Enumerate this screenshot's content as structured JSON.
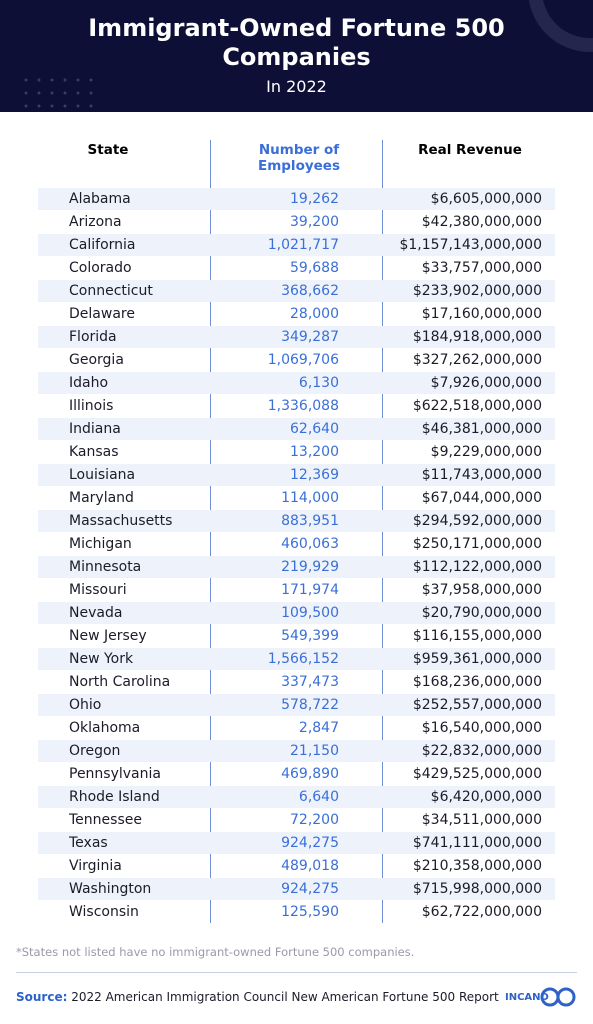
{
  "header": {
    "title": "Immigrant-Owned Fortune 500 Companies",
    "subtitle": "In 2022"
  },
  "table": {
    "columns": [
      "State",
      "Number of Employees",
      "Real Revenue"
    ],
    "rows": [
      [
        "Alabama",
        "19,262",
        "$6,605,000,000"
      ],
      [
        "Arizona",
        "39,200",
        "$42,380,000,000"
      ],
      [
        "California",
        "1,021,717",
        "$1,157,143,000,000"
      ],
      [
        "Colorado",
        "59,688",
        "$33,757,000,000"
      ],
      [
        "Connecticut",
        "368,662",
        "$233,902,000,000"
      ],
      [
        "Delaware",
        "28,000",
        "$17,160,000,000"
      ],
      [
        "Florida",
        "349,287",
        "$184,918,000,000"
      ],
      [
        "Georgia",
        "1,069,706",
        "$327,262,000,000"
      ],
      [
        "Idaho",
        "6,130",
        "$7,926,000,000"
      ],
      [
        "Illinois",
        "1,336,088",
        "$622,518,000,000"
      ],
      [
        "Indiana",
        "62,640",
        "$46,381,000,000"
      ],
      [
        "Kansas",
        "13,200",
        "$9,229,000,000"
      ],
      [
        "Louisiana",
        "12,369",
        "$11,743,000,000"
      ],
      [
        "Maryland",
        "114,000",
        "$67,044,000,000"
      ],
      [
        "Massachusetts",
        "883,951",
        "$294,592,000,000"
      ],
      [
        "Michigan",
        "460,063",
        "$250,171,000,000"
      ],
      [
        "Minnesota",
        "219,929",
        "$112,122,000,000"
      ],
      [
        "Missouri",
        "171,974",
        "$37,958,000,000"
      ],
      [
        "Nevada",
        "109,500",
        "$20,790,000,000"
      ],
      [
        "New Jersey",
        "549,399",
        "$116,155,000,000"
      ],
      [
        "New York",
        "1,566,152",
        "$959,361,000,000"
      ],
      [
        "North Carolina",
        "337,473",
        "$168,236,000,000"
      ],
      [
        "Ohio",
        "578,722",
        "$252,557,000,000"
      ],
      [
        "Oklahoma",
        "2,847",
        "$16,540,000,000"
      ],
      [
        "Oregon",
        "21,150",
        "$22,832,000,000"
      ],
      [
        "Pennsylvania",
        "469,890",
        "$429,525,000,000"
      ],
      [
        "Rhode Island",
        "6,640",
        "$6,420,000,000"
      ],
      [
        "Tennessee",
        "72,200",
        "$34,511,000,000"
      ],
      [
        "Texas",
        "924,275",
        "$741,111,000,000"
      ],
      [
        "Virginia",
        "489,018",
        "$210,358,000,000"
      ],
      [
        "Washington",
        "924,275",
        "$715,998,000,000"
      ],
      [
        "Wisconsin",
        "125,590",
        "$62,722,000,000"
      ]
    ]
  },
  "footnote": "*States not listed have no immigrant-owned Fortune 500 companies.",
  "source": {
    "label": "Source:",
    "text": "2022 American Immigration Council New American Fortune 500 Report"
  },
  "logo": "INCAND"
}
